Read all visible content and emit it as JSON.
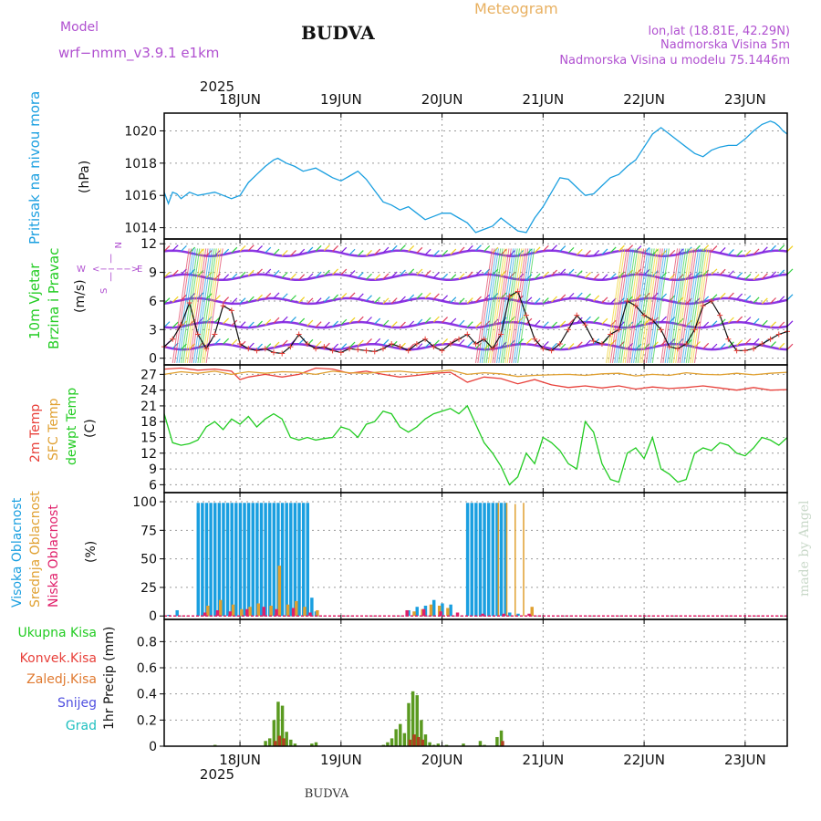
{
  "header": {
    "model_label": "Model",
    "model_name": "wrf−nmm_v3.9.1  e1km",
    "station": "BUDVA",
    "title": "Meteogram",
    "coords": "lon,lat (18.81E, 42.29N)",
    "elevation": "Nadmorska Visina 5m",
    "model_elevation": "Nadmorska Visina u modelu 75.1446m",
    "watermark": "made by Angel",
    "footer_station": "BUDVA"
  },
  "colors": {
    "pressure": "#1a9fe0",
    "temp2m": "#e8403a",
    "sfc_temp": "#e0a030",
    "dewpt": "#22cc22",
    "cloud_high": "#1a9fe0",
    "cloud_mid": "#e0a030",
    "cloud_low": "#e0206a",
    "precip_total": "#22cc22",
    "precip_conv": "#e8403a",
    "precip_frozen": "#e07a30",
    "snow": "#5050e0",
    "graupel": "#20c0c0",
    "header_purple": "#b050d0",
    "title_orange": "#e8b060",
    "wind_axis_label": "#b050d0",
    "wind_lines": "#8020e0"
  },
  "time_axis": {
    "top_year": "2025",
    "bottom_year": "2025",
    "days": [
      "18JUN",
      "19JUN",
      "20JUN",
      "21JUN",
      "22JUN",
      "23JUN"
    ],
    "day_offsets_h": [
      18,
      42,
      66,
      90,
      114,
      138
    ]
  },
  "chart_data": [
    {
      "type": "line",
      "panel": "pressure",
      "ylabel_series": "Pritisak na nivou mora",
      "ylabel_unit": "(hPa)",
      "yticks": [
        "1014",
        "1016",
        "1018",
        "1020"
      ],
      "ylim": [
        1013.3,
        1021.1
      ],
      "grid": true,
      "series": [
        {
          "name": "Pritisak na nivou mora",
          "x": [
            0,
            1,
            2,
            3,
            4,
            6,
            8,
            10,
            12,
            14,
            16,
            18,
            20,
            22,
            24,
            26,
            27,
            29,
            31,
            33,
            36,
            38,
            40,
            42,
            44,
            46,
            48,
            50,
            52,
            54,
            56,
            58,
            60,
            62,
            64,
            66,
            68,
            70,
            72,
            74,
            76,
            78,
            80,
            82,
            84,
            86,
            88,
            90,
            92,
            94,
            96,
            98,
            100,
            102,
            104,
            106,
            108,
            110,
            112,
            114,
            116,
            118,
            120,
            122,
            124,
            126,
            128,
            130,
            132,
            134,
            136,
            138,
            140,
            142,
            144,
            145,
            146,
            147,
            148
          ],
          "values": [
            1016.2,
            1015.5,
            1016.2,
            1016.1,
            1015.8,
            1016.2,
            1016.0,
            1016.1,
            1016.2,
            1016.0,
            1015.8,
            1016.0,
            1016.8,
            1017.3,
            1017.8,
            1018.2,
            1018.3,
            1018.0,
            1017.8,
            1017.5,
            1017.7,
            1017.4,
            1017.1,
            1016.9,
            1017.2,
            1017.5,
            1017.0,
            1016.3,
            1015.6,
            1015.4,
            1015.1,
            1015.3,
            1014.9,
            1014.5,
            1014.7,
            1014.9,
            1014.9,
            1014.6,
            1014.3,
            1013.7,
            1013.9,
            1014.1,
            1014.6,
            1014.2,
            1013.8,
            1013.7,
            1014.6,
            1015.3,
            1016.2,
            1017.1,
            1017.0,
            1016.5,
            1016.0,
            1016.1,
            1016.6,
            1017.1,
            1017.3,
            1017.8,
            1018.2,
            1019.0,
            1019.8,
            1020.2,
            1019.8,
            1019.4,
            1019.0,
            1018.6,
            1018.4,
            1018.8,
            1019.0,
            1019.1,
            1019.1,
            1019.5,
            1020.0,
            1020.4,
            1020.6,
            1020.5,
            1020.3,
            1020.0,
            1019.8
          ]
        }
      ]
    },
    {
      "type": "line",
      "panel": "wind",
      "ylabel_series_1": "10m Vjetar",
      "ylabel_series_2": "Brzina i Pravac",
      "ylabel_unit": "(m/s)",
      "compass": {
        "n": "N",
        "w": "W",
        "e": "E",
        "s": "S",
        "arrow_left": "<−−",
        "arrow_right": "−−>",
        "bar": "|"
      },
      "yticks": [
        "0",
        "3",
        "6",
        "9",
        "12"
      ],
      "ylim": [
        -0.7,
        12.5
      ],
      "grid": true,
      "barb_rows_ms": [
        1.2,
        3.5,
        6.0,
        8.5,
        11.0
      ],
      "series": [
        {
          "name": "Brzina",
          "x": [
            0,
            2,
            4,
            6,
            8,
            10,
            12,
            14,
            16,
            18,
            20,
            22,
            24,
            26,
            28,
            30,
            32,
            34,
            36,
            38,
            40,
            42,
            44,
            46,
            48,
            50,
            52,
            54,
            56,
            58,
            60,
            62,
            64,
            66,
            68,
            70,
            72,
            74,
            76,
            78,
            80,
            82,
            84,
            86,
            88,
            90,
            92,
            94,
            96,
            98,
            100,
            102,
            104,
            106,
            108,
            110,
            112,
            114,
            116,
            118,
            120,
            122,
            124,
            126,
            128,
            130,
            132,
            134,
            136,
            138,
            140,
            142,
            144,
            146,
            148
          ],
          "values": [
            1.2,
            2.0,
            3.5,
            5.8,
            2.5,
            1.0,
            2.5,
            5.5,
            5.0,
            1.5,
            1.0,
            0.8,
            1.0,
            0.6,
            0.5,
            1.2,
            2.5,
            1.5,
            1.0,
            1.2,
            0.8,
            0.6,
            1.0,
            0.9,
            0.8,
            0.7,
            1.0,
            1.5,
            1.2,
            0.8,
            1.5,
            2.0,
            1.2,
            0.8,
            1.5,
            2.0,
            2.5,
            1.5,
            2.0,
            1.0,
            2.5,
            6.5,
            7.0,
            4.5,
            2.0,
            1.0,
            0.8,
            1.5,
            3.0,
            4.5,
            3.5,
            1.8,
            1.5,
            2.5,
            3.0,
            6.0,
            5.5,
            4.5,
            4.0,
            3.0,
            1.2,
            1.0,
            1.5,
            3.0,
            5.5,
            6.0,
            4.5,
            2.0,
            0.8,
            0.8,
            1.0,
            1.5,
            2.0,
            2.5,
            2.8
          ]
        }
      ]
    },
    {
      "type": "line",
      "panel": "temperature",
      "ylabel_series_1": "2m Temp",
      "ylabel_series_2": "SFC Temp",
      "ylabel_series_3": "dewpt Temp",
      "ylabel_unit": "(C)",
      "yticks": [
        "6",
        "9",
        "12",
        "15",
        "18",
        "21",
        "24",
        "27"
      ],
      "ylim": [
        4.5,
        28.8
      ],
      "grid": true,
      "series": [
        {
          "name": "2m Temp",
          "x": [
            0,
            4,
            8,
            12,
            16,
            18,
            20,
            24,
            28,
            32,
            36,
            40,
            44,
            48,
            52,
            56,
            60,
            64,
            68,
            72,
            76,
            80,
            84,
            88,
            92,
            96,
            100,
            104,
            108,
            112,
            116,
            120,
            124,
            128,
            132,
            136,
            140,
            144,
            148
          ],
          "values": [
            28.0,
            28.2,
            27.8,
            28.0,
            27.6,
            26.0,
            26.5,
            27.0,
            26.5,
            27.0,
            28.2,
            28.0,
            27.2,
            27.6,
            27.0,
            26.5,
            26.8,
            27.2,
            27.4,
            25.5,
            26.5,
            26.2,
            25.2,
            26.0,
            25.0,
            24.5,
            24.8,
            24.4,
            24.8,
            24.2,
            24.6,
            24.3,
            24.5,
            24.8,
            24.4,
            24.0,
            24.5,
            24.0,
            24.1
          ]
        },
        {
          "name": "SFC Temp",
          "x": [
            0,
            4,
            8,
            12,
            16,
            20,
            24,
            28,
            32,
            36,
            40,
            44,
            48,
            52,
            56,
            60,
            64,
            68,
            72,
            76,
            80,
            84,
            88,
            92,
            96,
            100,
            104,
            108,
            112,
            116,
            120,
            124,
            128,
            132,
            136,
            140,
            144,
            148
          ],
          "values": [
            27.0,
            27.5,
            27.2,
            27.6,
            27.0,
            27.5,
            27.2,
            27.5,
            27.4,
            27.0,
            27.6,
            27.3,
            27.2,
            27.5,
            27.6,
            27.3,
            27.5,
            27.8,
            27.0,
            27.3,
            27.1,
            26.6,
            26.8,
            26.9,
            27.0,
            26.8,
            27.1,
            27.2,
            26.7,
            27.0,
            26.8,
            27.3,
            27.0,
            26.9,
            27.2,
            26.9,
            27.2,
            27.4
          ]
        },
        {
          "name": "dewpt Temp",
          "x": [
            0,
            2,
            4,
            6,
            8,
            10,
            12,
            14,
            16,
            18,
            20,
            22,
            24,
            26,
            28,
            30,
            32,
            34,
            36,
            38,
            40,
            42,
            44,
            46,
            48,
            50,
            52,
            54,
            56,
            58,
            60,
            62,
            64,
            66,
            68,
            70,
            72,
            74,
            76,
            78,
            80,
            82,
            84,
            86,
            88,
            90,
            92,
            94,
            96,
            98,
            100,
            102,
            104,
            106,
            108,
            110,
            112,
            114,
            116,
            118,
            120,
            122,
            124,
            126,
            128,
            130,
            132,
            134,
            136,
            138,
            140,
            142,
            144,
            146,
            148
          ],
          "values": [
            19.5,
            14.0,
            13.5,
            13.8,
            14.5,
            17.0,
            18.0,
            16.5,
            18.5,
            17.5,
            19.0,
            17.0,
            18.5,
            19.5,
            18.5,
            15.0,
            14.5,
            15.0,
            14.5,
            14.8,
            15.0,
            17.0,
            16.5,
            15.0,
            17.5,
            18.0,
            20.0,
            19.5,
            17.0,
            16.0,
            17.0,
            18.5,
            19.5,
            20.0,
            20.5,
            19.5,
            21.0,
            17.5,
            14.0,
            12.0,
            9.5,
            6.0,
            7.5,
            12.0,
            10.0,
            15.0,
            14.0,
            12.5,
            10.0,
            9.0,
            18.0,
            16.0,
            10.0,
            7.0,
            6.5,
            12.0,
            13.0,
            11.0,
            15.0,
            9.0,
            8.0,
            6.5,
            7.0,
            12.0,
            13.0,
            12.5,
            14.0,
            13.5,
            12.0,
            11.5,
            13.0,
            15.0,
            14.5,
            13.5,
            15.0
          ]
        }
      ]
    },
    {
      "type": "bar",
      "panel": "clouds",
      "ylabel_series_1": "Visoka Oblacnost",
      "ylabel_series_2": "Srednja Oblacnost",
      "ylabel_series_3": "Niska Oblacnost",
      "ylabel_unit": "(%)",
      "yticks": [
        "0",
        "25",
        "50",
        "75",
        "100"
      ],
      "ylim": [
        -3,
        108
      ],
      "grid": true,
      "series": [
        {
          "name": "Visoka Oblacnost",
          "x": [
            1,
            3,
            8,
            9,
            10,
            11,
            12,
            13,
            14,
            15,
            16,
            17,
            18,
            19,
            20,
            21,
            22,
            23,
            24,
            25,
            26,
            27,
            28,
            29,
            30,
            31,
            32,
            33,
            34,
            35,
            36,
            58,
            60,
            62,
            64,
            66,
            68,
            72,
            73,
            74,
            75,
            76,
            77,
            78,
            79,
            80,
            81,
            82,
            84
          ],
          "values": [
            1,
            5,
            99,
            99,
            99,
            99,
            99,
            99,
            99,
            99,
            99,
            99,
            99,
            99,
            99,
            99,
            99,
            99,
            99,
            99,
            99,
            99,
            99,
            99,
            99,
            99,
            99,
            99,
            99,
            16,
            4,
            5,
            8,
            9,
            14,
            11,
            10,
            99,
            99,
            99,
            99,
            99,
            99,
            99,
            99,
            99,
            99,
            3,
            2
          ]
        },
        {
          "name": "Srednja Oblacnost",
          "x": [
            10,
            13,
            16,
            18,
            20,
            22,
            25,
            27,
            29,
            31,
            33,
            36,
            59,
            61,
            63,
            65,
            67,
            79,
            81,
            83,
            85,
            87
          ],
          "values": [
            9,
            14,
            10,
            6,
            8,
            11,
            9,
            44,
            10,
            13,
            8,
            5,
            4,
            6,
            10,
            9,
            7,
            99,
            99,
            98,
            99,
            8
          ]
        },
        {
          "name": "Niska Oblacnost",
          "x": [
            9,
            12,
            15,
            19,
            23,
            26,
            30,
            34,
            57,
            61,
            65,
            69,
            75,
            80,
            86
          ],
          "values": [
            3,
            5,
            4,
            6,
            8,
            6,
            7,
            3,
            5,
            6,
            4,
            3,
            2,
            2,
            2
          ]
        }
      ]
    },
    {
      "type": "bar",
      "panel": "precipitation",
      "ylabel_unit": "1hr Precip (mm)",
      "legend": [
        "Ukupna Kisa",
        "Konvek.Kisa",
        "Zaledj.Kisa",
        "Snijeg",
        "Grad"
      ],
      "yticks": [
        "0",
        "0.2",
        "0.4",
        "0.6",
        "0.8"
      ],
      "ylim": [
        0,
        0.97
      ],
      "grid": true,
      "series": [
        {
          "name": "Ukupna Kisa",
          "x": [
            12,
            24,
            25,
            26,
            27,
            28,
            29,
            30,
            31,
            35,
            36,
            52,
            53,
            54,
            55,
            56,
            57,
            58,
            59,
            60,
            61,
            62,
            63,
            64,
            65,
            67,
            71,
            75,
            76,
            79,
            80
          ],
          "values": [
            0.01,
            0.04,
            0.06,
            0.2,
            0.34,
            0.31,
            0.11,
            0.05,
            0.02,
            0.02,
            0.03,
            0.01,
            0.03,
            0.06,
            0.13,
            0.17,
            0.1,
            0.33,
            0.42,
            0.39,
            0.2,
            0.09,
            0.03,
            0.01,
            0.02,
            0.01,
            0.02,
            0.04,
            0.01,
            0.07,
            0.12
          ]
        },
        {
          "name": "Konvek.Kisa",
          "x": [
            26,
            27,
            28,
            58,
            59,
            60,
            61,
            80
          ],
          "values": [
            0.04,
            0.08,
            0.06,
            0.05,
            0.09,
            0.07,
            0.05,
            0.04
          ]
        }
      ]
    }
  ]
}
